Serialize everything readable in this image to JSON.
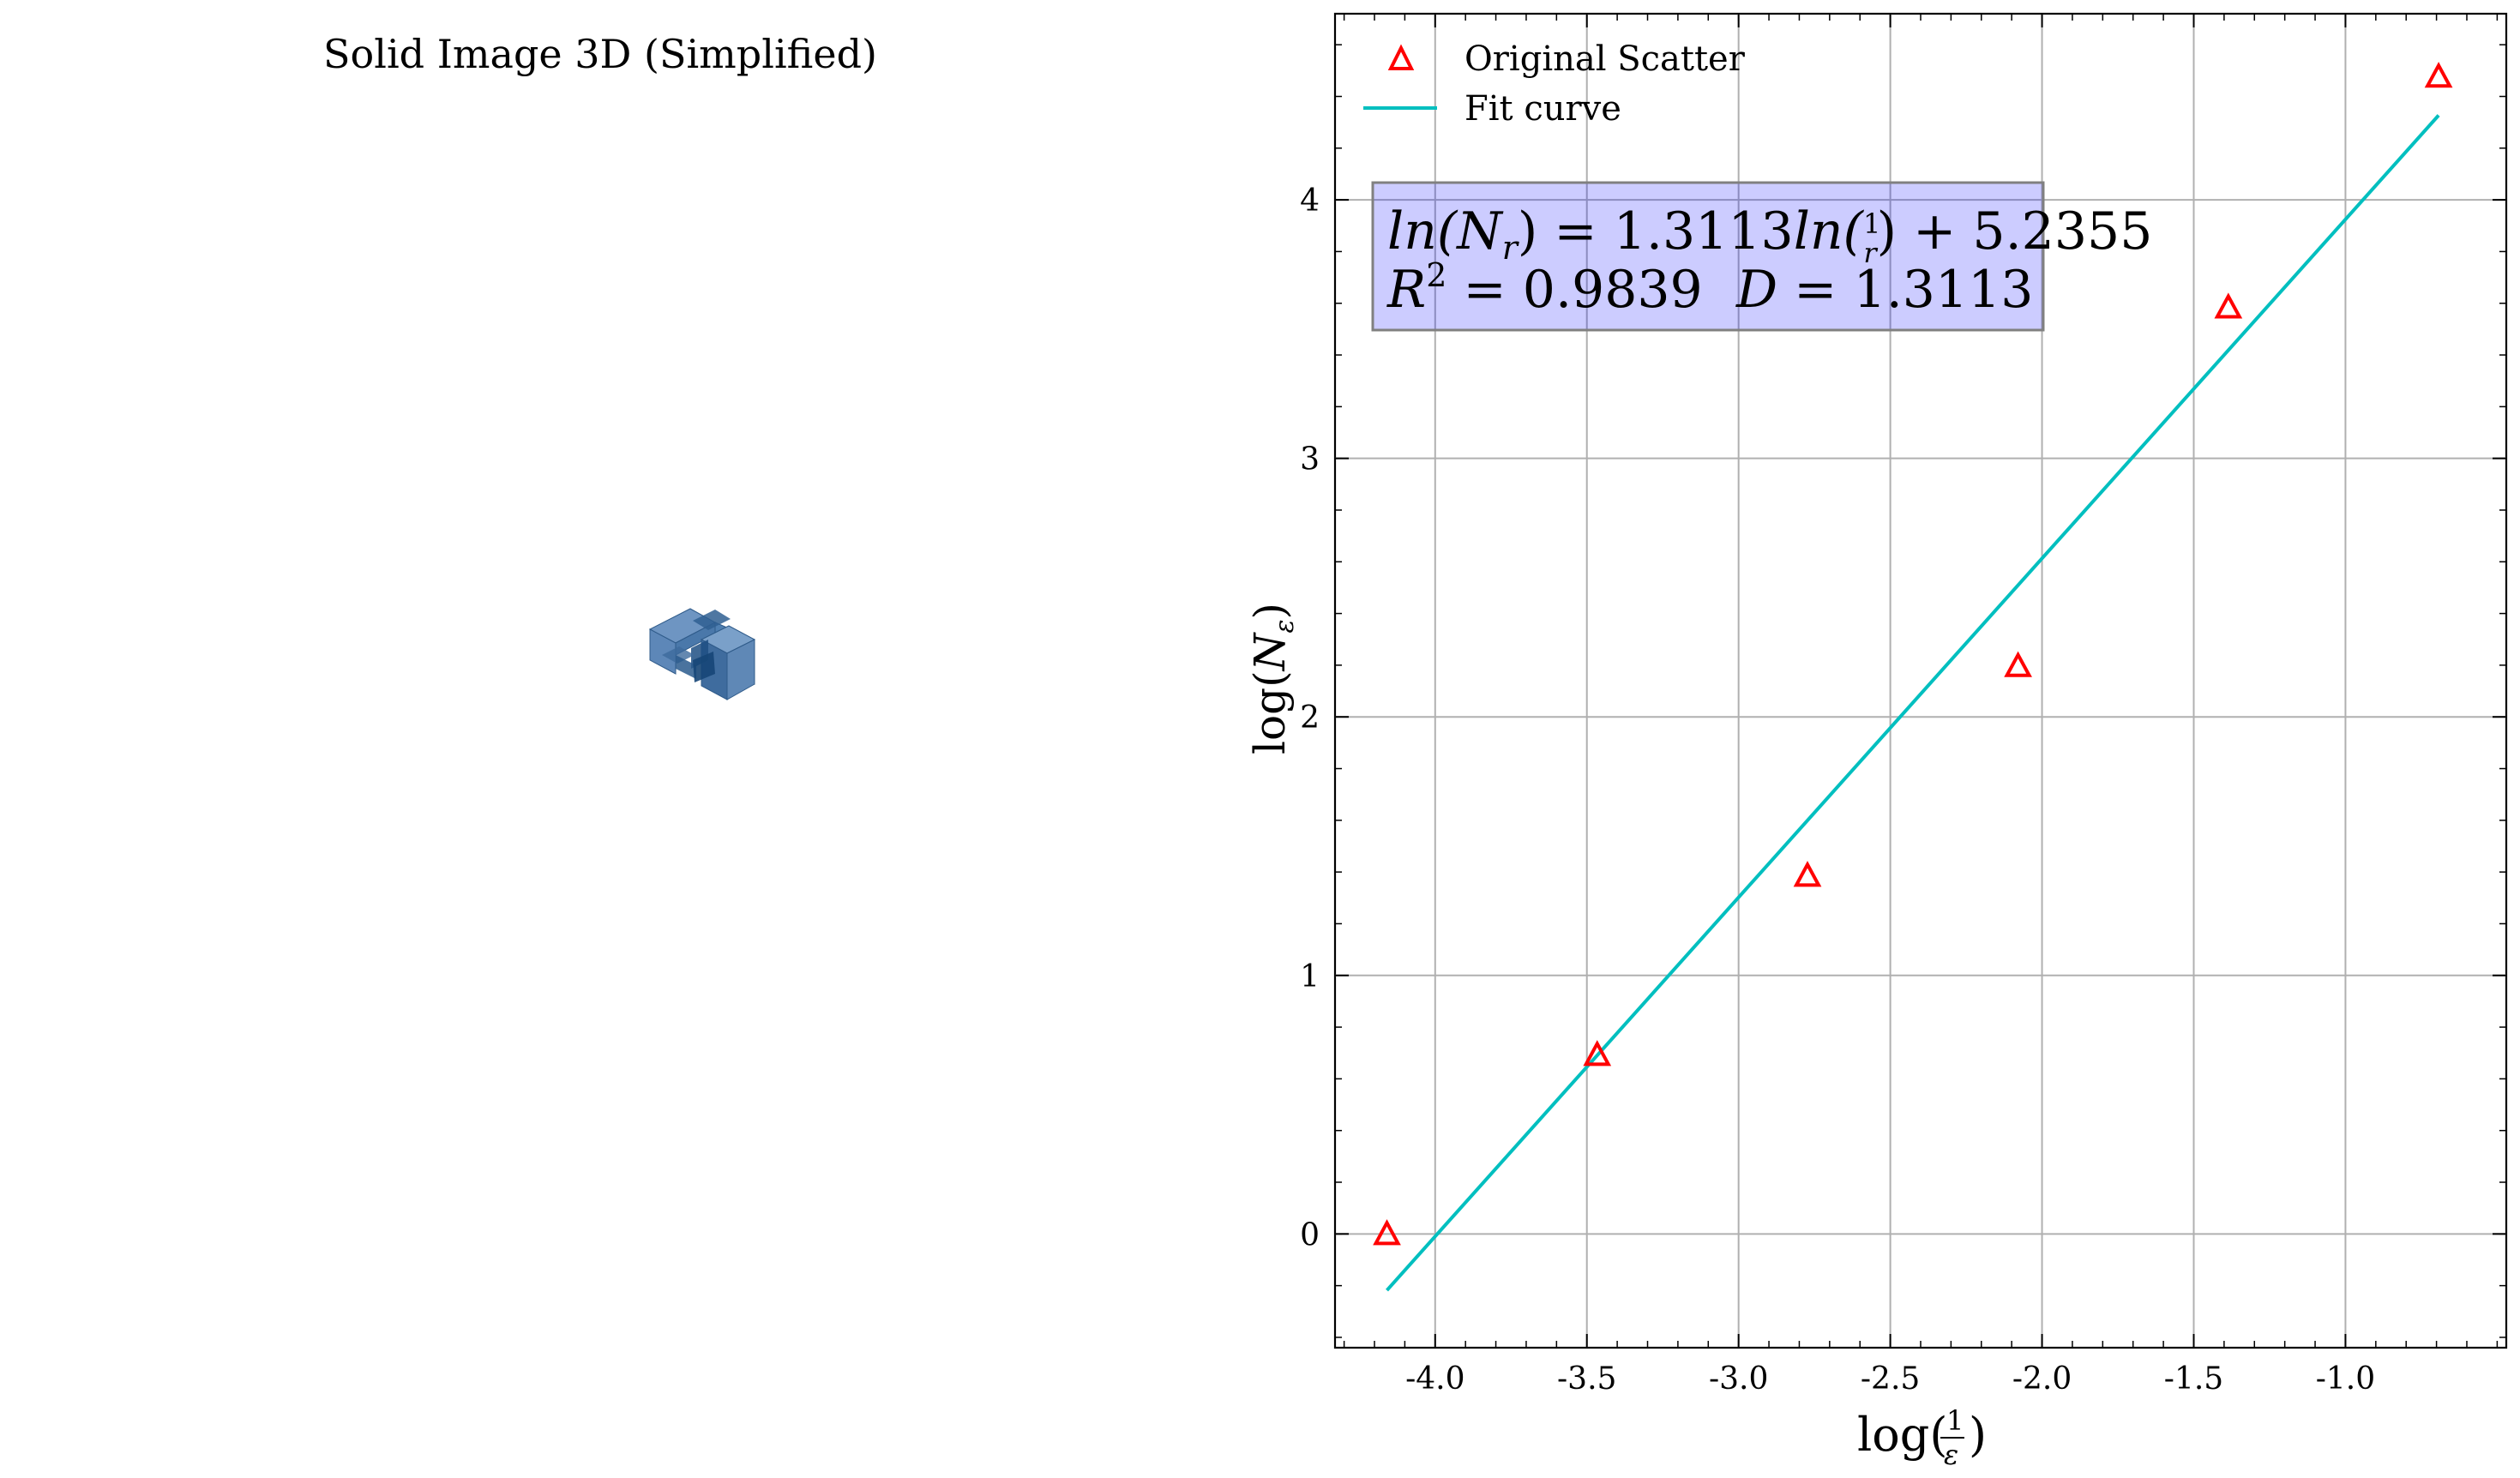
{
  "left_panel": {
    "title": "Solid Image 3D (Simplified)",
    "object_color": "#4a78aa"
  },
  "chart_data": {
    "type": "scatter",
    "xlabel_main": "log(",
    "xlabel_num": "1",
    "xlabel_den": "ε",
    "xlabel_close": ")",
    "ylabel_main": "log(",
    "ylabel_var": "N",
    "ylabel_sub": "ε",
    "ylabel_close": ")",
    "xlim": [
      -4.33,
      -0.47
    ],
    "ylim": [
      -0.44,
      4.72
    ],
    "xticks": [
      -4.0,
      -3.5,
      -3.0,
      -2.5,
      -2.0,
      -1.5,
      -1.0
    ],
    "xtick_labels": [
      "-4.0",
      "-3.5",
      "-3.0",
      "-2.5",
      "-2.0",
      "-1.5",
      "-1.0"
    ],
    "yticks": [
      0,
      1,
      2,
      3,
      4
    ],
    "ytick_labels": [
      "0",
      "1",
      "2",
      "3",
      "4"
    ],
    "grid": true,
    "legend_position": "top-left",
    "series": [
      {
        "name": "Original Scatter",
        "kind": "scatter",
        "marker": "triangle-open",
        "color": "#ff0000",
        "x": [
          -4.159,
          -3.466,
          -2.773,
          -2.079,
          -1.386,
          -0.693
        ],
        "y": [
          0.0,
          0.693,
          1.386,
          2.197,
          3.584,
          4.477
        ]
      },
      {
        "name": "Fit curve",
        "kind": "line",
        "color": "#00bfbf",
        "x": [
          -4.159,
          -0.693
        ],
        "y": [
          -0.218,
          4.327
        ]
      }
    ],
    "annotation": {
      "line1_a": "ln(",
      "line1_b": "N",
      "line1_c": "r",
      "line1_d": ") = 1.3113",
      "line1_e": "ln(",
      "line1_f": "1",
      "line1_g": "r",
      "line1_h": ") + 5.2355",
      "line2_a": "R",
      "line2_b": "2",
      "line2_c": " = 0.9839",
      "line2_d": "D",
      "line2_e": " = 1.3113",
      "box_color": "#0000ff"
    }
  }
}
